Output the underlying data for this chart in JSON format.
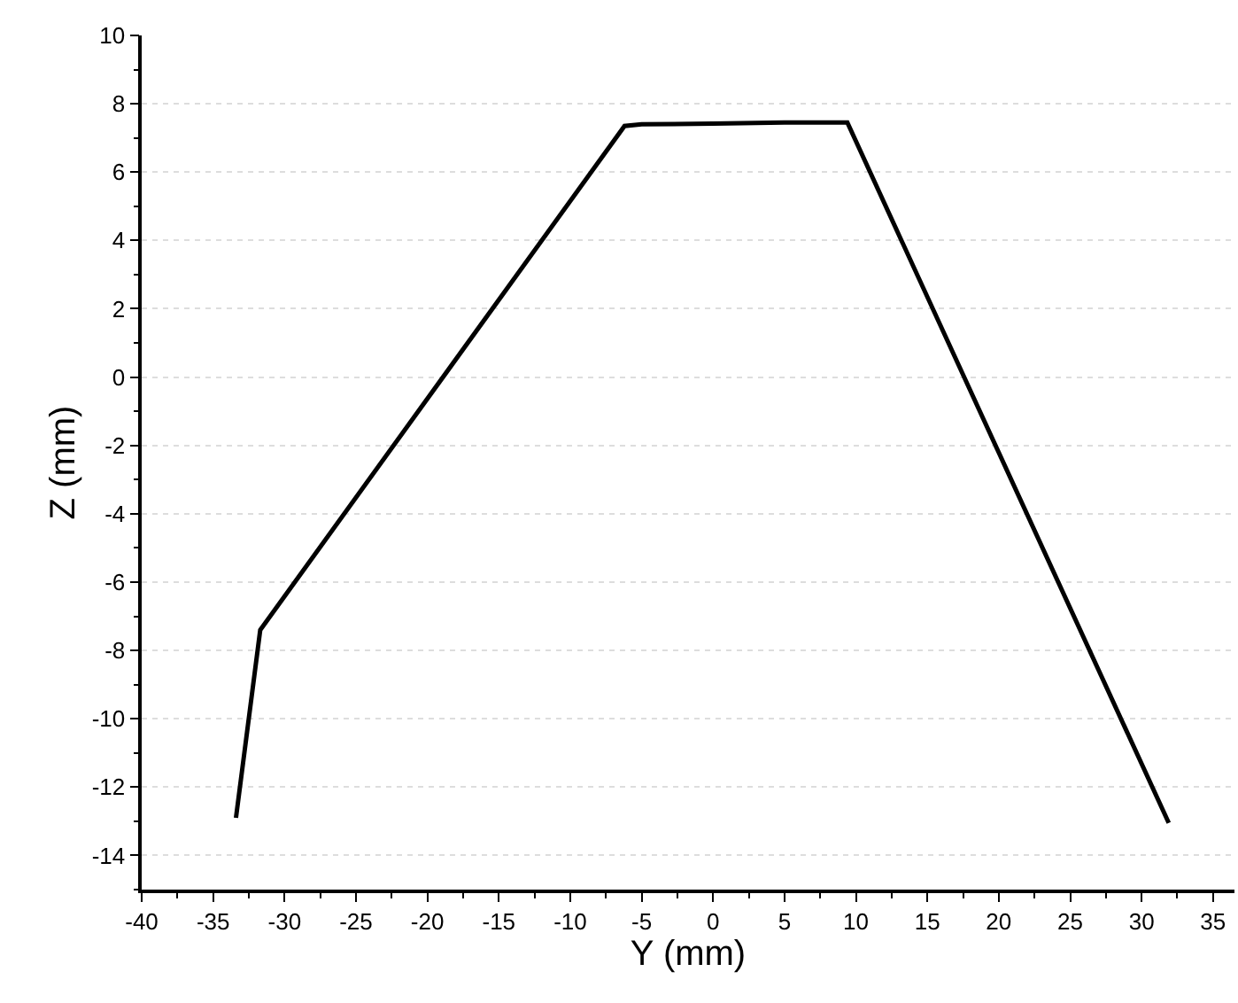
{
  "chart_data": {
    "type": "line",
    "xlabel": "Y (mm)",
    "ylabel": "Z (mm)",
    "x": [
      -33.4,
      -31.7,
      -6.2,
      -5.0,
      0,
      5,
      9.4,
      31.9
    ],
    "series": [
      {
        "color": "#000000",
        "values": [
          -12.9,
          -7.4,
          7.35,
          7.4,
          7.42,
          7.45,
          7.45,
          -13.05
        ]
      }
    ],
    "xlim": [
      -40,
      36.5
    ],
    "xticks": [
      -40,
      -35,
      -30,
      -25,
      -20,
      -15,
      -10,
      -5,
      0,
      5,
      10,
      15,
      20,
      25,
      30,
      35
    ],
    "ylim": [
      -15,
      10
    ],
    "yticks": [
      -14,
      -12,
      -10,
      -8,
      -6,
      -4,
      -2,
      0,
      2,
      4,
      6,
      8,
      10
    ],
    "grid": "y",
    "marker": "none",
    "line_style": "solid",
    "legend": false
  }
}
